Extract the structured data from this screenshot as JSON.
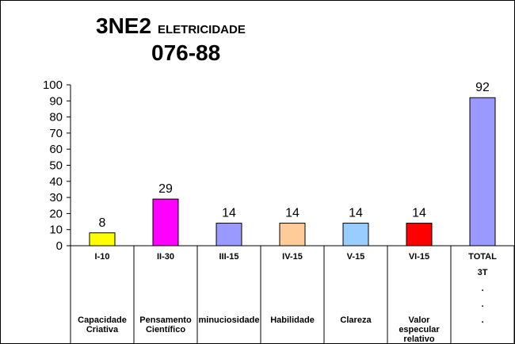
{
  "title": {
    "code": "3NE2",
    "name": "ELETRICIDADE",
    "number": "076-88"
  },
  "chart_data": {
    "type": "bar",
    "categories": [
      "I-10",
      "II-30",
      "III-15",
      "IV-15",
      "V-15",
      "VI-15",
      "TOTAL"
    ],
    "category_sublabels": [
      [
        "Capacidade",
        "Criativa"
      ],
      [
        "Pensamento",
        "Científico"
      ],
      [
        "minuciosidade"
      ],
      [
        "Habilidade"
      ],
      [
        "Clareza"
      ],
      [
        "Valor",
        "especular",
        "relativo"
      ],
      [
        "3T",
        ".",
        ".",
        "."
      ]
    ],
    "values": [
      8,
      29,
      14,
      14,
      14,
      14,
      92
    ],
    "colors": [
      "#ffff00",
      "#ff00ff",
      "#9999ff",
      "#ffcc99",
      "#99ccff",
      "#ff0000",
      "#9999ff"
    ],
    "ylim": [
      0,
      100
    ],
    "yticks": [
      0,
      10,
      20,
      30,
      40,
      50,
      60,
      70,
      80,
      90,
      100
    ],
    "grid": false,
    "legend": "none"
  }
}
